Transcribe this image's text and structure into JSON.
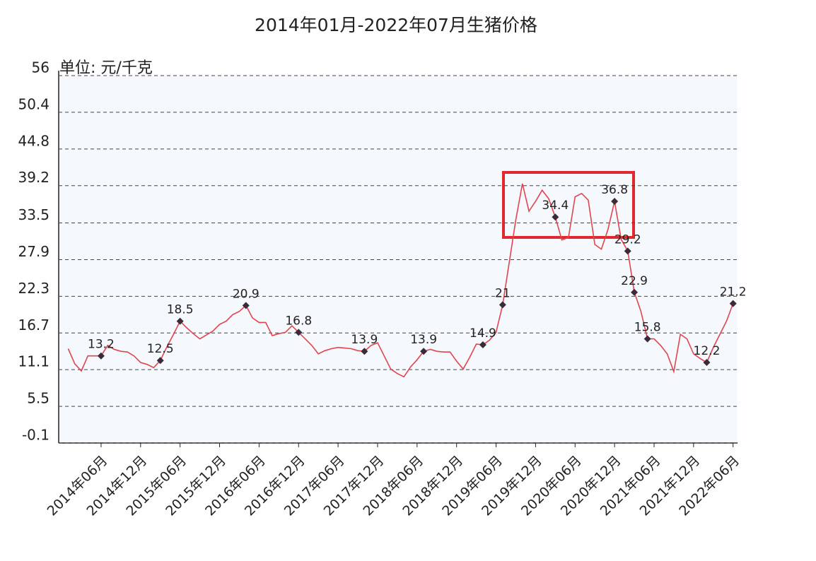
{
  "chart_data": {
    "type": "line",
    "title": "2014年01月-2022年07月生猪价格",
    "y_label": "单位: 元/千克",
    "categories": [
      null,
      null,
      null,
      null,
      null,
      "2014年06月",
      null,
      null,
      null,
      null,
      null,
      "2014年12月",
      null,
      null,
      null,
      null,
      null,
      "2015年06月",
      null,
      null,
      null,
      null,
      null,
      "2015年12月",
      null,
      null,
      null,
      null,
      null,
      "2016年06月",
      null,
      null,
      null,
      null,
      null,
      "2016年12月",
      null,
      null,
      null,
      null,
      null,
      "2017年06月",
      null,
      null,
      null,
      null,
      null,
      "2017年12月",
      null,
      null,
      null,
      null,
      null,
      "2018年06月",
      null,
      null,
      null,
      null,
      null,
      "2018年12月",
      null,
      null,
      null,
      null,
      null,
      "2019年06月",
      null,
      null,
      null,
      null,
      null,
      "2019年12月",
      null,
      null,
      null,
      null,
      null,
      "2020年06月",
      null,
      null,
      null,
      null,
      null,
      "2020年12月",
      null,
      null,
      null,
      null,
      null,
      "2021年06月",
      null,
      null,
      null,
      null,
      null,
      "2021年12月",
      null,
      null,
      null,
      null,
      null,
      "2022年06月"
    ],
    "values": [
      14.3,
      12.0,
      10.9,
      13.2,
      13.2,
      13.2,
      14.8,
      14.2,
      13.9,
      13.8,
      13.2,
      12.2,
      11.9,
      11.4,
      12.5,
      14.6,
      16.5,
      18.5,
      17.5,
      16.6,
      15.8,
      16.4,
      17.0,
      18.0,
      18.5,
      19.5,
      20.0,
      20.9,
      19.0,
      18.3,
      18.3,
      16.3,
      16.6,
      16.8,
      17.8,
      16.8,
      15.8,
      14.8,
      13.5,
      14.0,
      14.3,
      14.5,
      14.4,
      14.3,
      14.0,
      13.9,
      14.8,
      15.2,
      13.2,
      11.2,
      10.5,
      10.0,
      11.5,
      12.6,
      13.9,
      14.2,
      13.9,
      13.8,
      13.8,
      12.4,
      11.2,
      13.0,
      15.0,
      14.9,
      15.6,
      16.8,
      21,
      27.5,
      34,
      39.5,
      35.3,
      36.8,
      38.5,
      37.2,
      34.4,
      30.9,
      31.3,
      37.5,
      38.0,
      37.0,
      30.2,
      29.5,
      32.5,
      36.8,
      31.0,
      29.2,
      22.9,
      20.0,
      15.8,
      15.8,
      14.8,
      13.5,
      10.8,
      16.5,
      15.8,
      13.5,
      12.8,
      12.2,
      14.5,
      16.5,
      18.5,
      21.2
    ],
    "value_labels": [
      null,
      null,
      null,
      null,
      null,
      "13.2",
      null,
      null,
      null,
      null,
      null,
      null,
      null,
      null,
      "12.5",
      null,
      null,
      "18.5",
      null,
      null,
      null,
      null,
      null,
      null,
      null,
      null,
      null,
      "20.9",
      null,
      null,
      null,
      null,
      null,
      null,
      null,
      "16.8",
      null,
      null,
      null,
      null,
      null,
      null,
      null,
      null,
      null,
      "13.9",
      null,
      null,
      null,
      null,
      null,
      null,
      null,
      null,
      "13.9",
      null,
      null,
      null,
      null,
      null,
      null,
      null,
      null,
      "14.9",
      null,
      null,
      "21",
      null,
      null,
      null,
      null,
      null,
      null,
      null,
      "34.4",
      null,
      null,
      null,
      null,
      null,
      null,
      null,
      null,
      "36.8",
      null,
      "29.2",
      "22.9",
      null,
      "15.8",
      null,
      null,
      null,
      null,
      null,
      null,
      null,
      null,
      "12.2",
      null,
      null,
      null,
      "21.2"
    ],
    "color": "#e0454f",
    "ylim": [
      -0.1,
      56
    ],
    "yticks": [
      -0.1,
      5.5,
      11.1,
      16.7,
      22.3,
      27.9,
      33.5,
      39.2,
      44.8,
      50.4,
      56
    ],
    "grid": true
  }
}
